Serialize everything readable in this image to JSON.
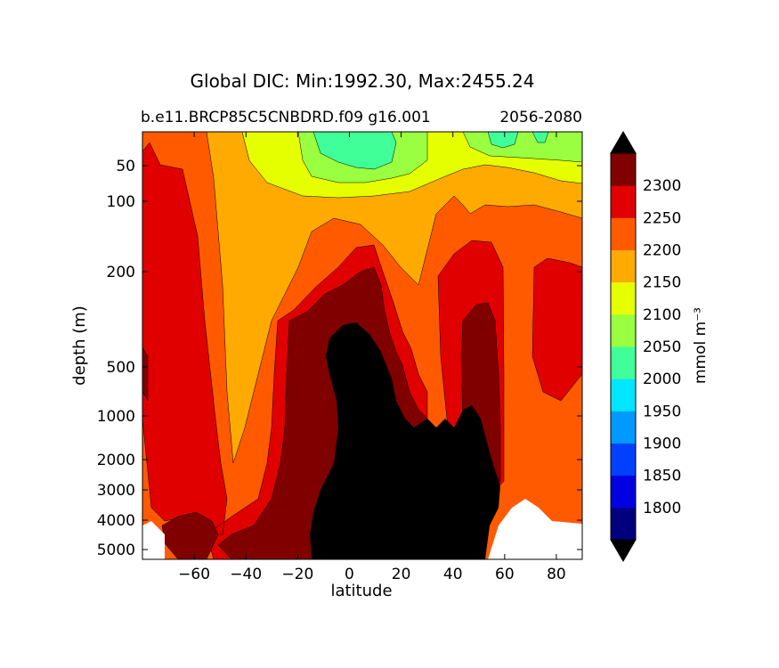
{
  "chart_data": {
    "type": "contour",
    "title": "Global DIC: Min:1992.30, Max:2455.24",
    "subtitle_left": "b.e11.BRCP85C5CNBDRD.f09 g16.001",
    "subtitle_right": "2056-2080",
    "xlabel": "latitude",
    "ylabel": "depth (m)",
    "xlim": [
      -80,
      90
    ],
    "x_ticks": [
      -60,
      -40,
      -20,
      0,
      20,
      40,
      60,
      80
    ],
    "x_tick_labels": [
      "−60",
      "−40",
      "−20",
      "0",
      "20",
      "40",
      "60",
      "80"
    ],
    "y_ticks": [
      50,
      100,
      200,
      500,
      1000,
      2000,
      3000,
      4000,
      5000
    ],
    "y_tick_labels": [
      "50",
      "100",
      "200",
      "500",
      "1000",
      "2000",
      "3000",
      "4000",
      "5000"
    ],
    "y_axis_inverted": true,
    "colorbar": {
      "label": "mmol m⁻³",
      "levels": [
        1800,
        1850,
        1900,
        1950,
        2000,
        2050,
        2100,
        2150,
        2200,
        2250,
        2300
      ],
      "level_labels": [
        "1800",
        "1850",
        "1900",
        "1950",
        "2000",
        "2050",
        "2100",
        "2150",
        "2200",
        "2250",
        "2300"
      ],
      "colors": [
        "#00007f",
        "#0000e0",
        "#0040ff",
        "#0099ff",
        "#00e6ff",
        "#40ff99",
        "#99ff40",
        "#e6ff00",
        "#ffaa00",
        "#ff5a00",
        "#e00000",
        "#800000"
      ],
      "extend": "both",
      "under_color": "#000000",
      "over_color": "#000000"
    }
  }
}
